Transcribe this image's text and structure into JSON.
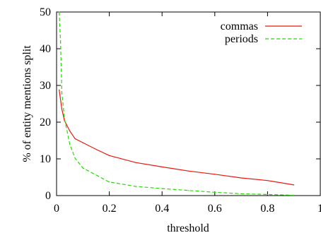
{
  "chart_data": {
    "type": "line",
    "title": "",
    "xlabel": "threshold",
    "ylabel": "% of entity mentions split",
    "xlim": [
      0,
      1
    ],
    "ylim": [
      0,
      50
    ],
    "x_ticks": [
      0,
      0.2,
      0.4,
      0.6,
      0.8,
      1
    ],
    "x_tick_labels": [
      "0",
      "0.2",
      "0.4",
      "0.6",
      "0.8",
      "1"
    ],
    "y_ticks": [
      0,
      10,
      20,
      30,
      40,
      50
    ],
    "y_tick_labels": [
      "0",
      "10",
      "20",
      "30",
      "40",
      "50"
    ],
    "grid": false,
    "legend_position": "top-right",
    "series": [
      {
        "name": "commas",
        "color": "#e8180c",
        "style": "solid",
        "x": [
          0.01,
          0.02,
          0.03,
          0.05,
          0.07,
          0.1,
          0.15,
          0.2,
          0.3,
          0.4,
          0.5,
          0.6,
          0.7,
          0.8,
          0.9
        ],
        "y": [
          28.8,
          23.5,
          20.4,
          17.6,
          15.5,
          14.4,
          12.6,
          10.9,
          9.0,
          7.8,
          6.7,
          5.8,
          4.8,
          4.1,
          2.9
        ]
      },
      {
        "name": "periods",
        "color": "#22dd00",
        "style": "dashed",
        "x": [
          0.01,
          0.015,
          0.02,
          0.03,
          0.05,
          0.07,
          0.1,
          0.15,
          0.2,
          0.3,
          0.4,
          0.5,
          0.6,
          0.7,
          0.8,
          0.9
        ],
        "y": [
          50,
          42,
          28,
          21,
          14,
          10.2,
          7.5,
          5.6,
          3.7,
          2.5,
          1.9,
          1.4,
          0.9,
          0.5,
          0.3,
          0.1
        ]
      }
    ]
  }
}
